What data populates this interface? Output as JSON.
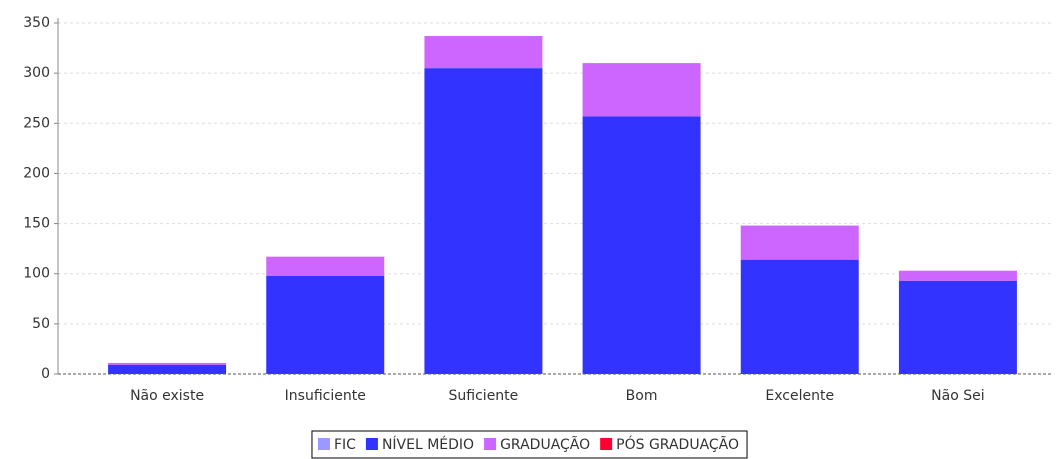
{
  "chart_data": {
    "type": "stacked_bar",
    "categories": [
      "Não existe",
      "Insuficiente",
      "Suficiente",
      "Bom",
      "Excelente",
      "Não Sei"
    ],
    "series": [
      {
        "name": "FIC",
        "color": "#9999ff",
        "values": [
          0,
          0,
          0,
          0,
          0,
          0
        ]
      },
      {
        "name": "NÍVEL MÉDIO",
        "color": "#3333ff",
        "values": [
          9,
          98,
          305,
          257,
          114,
          93
        ]
      },
      {
        "name": "GRADUAÇÃO",
        "color": "#cc66ff",
        "values": [
          2,
          19,
          32,
          53,
          34,
          10
        ]
      },
      {
        "name": "PÓS GRADUAÇÃO",
        "color": "#ff0033",
        "values": [
          0,
          0,
          0,
          0,
          0,
          0
        ]
      }
    ],
    "ylim": [
      0,
      350
    ],
    "yticks": [
      0,
      50,
      100,
      150,
      200,
      250,
      300,
      350
    ],
    "grid": true,
    "legend": "bottom"
  }
}
